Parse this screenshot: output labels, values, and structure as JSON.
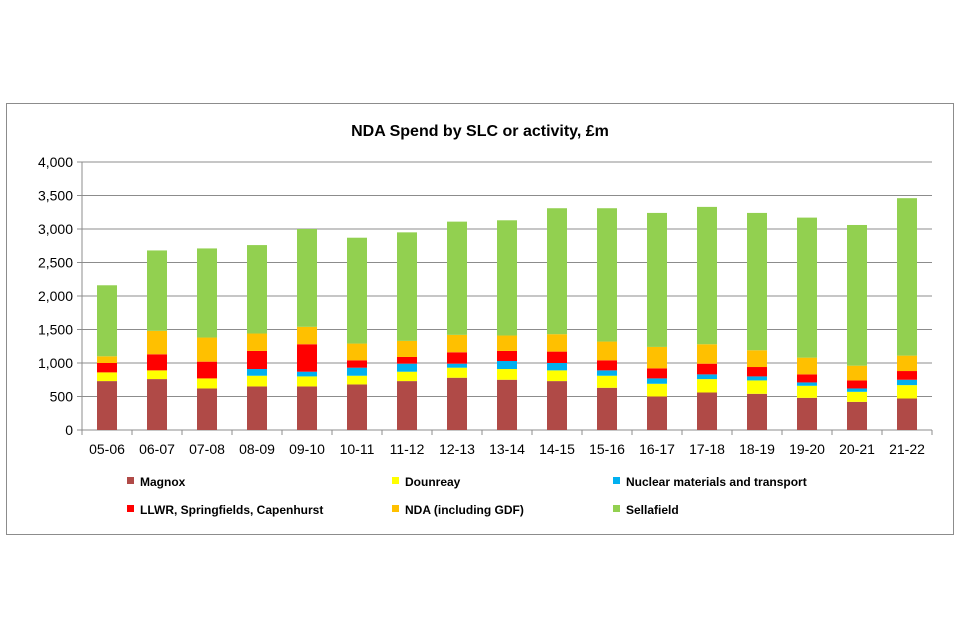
{
  "chart_data": {
    "type": "bar",
    "stacked": true,
    "title": "NDA Spend by SLC or activity, £m",
    "xlabel": "",
    "ylabel": "",
    "ylim": [
      0,
      4000
    ],
    "yticks": [
      0,
      500,
      1000,
      1500,
      2000,
      2500,
      3000,
      3500,
      4000
    ],
    "ytick_labels": [
      "0",
      "500",
      "1,000",
      "1,500",
      "2,000",
      "2,500",
      "3,000",
      "3,500",
      "4,000"
    ],
    "grid": true,
    "legend_position": "bottom",
    "categories": [
      "05-06",
      "06-07",
      "07-08",
      "08-09",
      "09-10",
      "10-11",
      "11-12",
      "12-13",
      "13-14",
      "14-15",
      "15-16",
      "16-17",
      "17-18",
      "18-19",
      "19-20",
      "20-21",
      "21-22"
    ],
    "series": [
      {
        "name": "Magnox",
        "color": "#b04a47",
        "values": [
          730,
          760,
          620,
          650,
          650,
          680,
          730,
          780,
          750,
          730,
          630,
          500,
          560,
          540,
          480,
          420,
          470
        ]
      },
      {
        "name": "Dounreay",
        "color": "#ffff00",
        "values": [
          130,
          130,
          150,
          160,
          150,
          130,
          140,
          150,
          160,
          160,
          180,
          190,
          200,
          200,
          180,
          150,
          200
        ]
      },
      {
        "name": "Nuclear materials and transport",
        "color": "#00b0f0",
        "values": [
          0,
          0,
          0,
          100,
          70,
          120,
          120,
          60,
          120,
          110,
          80,
          80,
          70,
          60,
          50,
          50,
          80
        ]
      },
      {
        "name": "LLWR, Springfields, Capenhurst",
        "color": "#ff0000",
        "values": [
          140,
          240,
          250,
          270,
          410,
          110,
          100,
          170,
          150,
          170,
          150,
          150,
          160,
          140,
          120,
          120,
          130
        ]
      },
      {
        "name": "NDA (including GDF)",
        "color": "#ffc000",
        "values": [
          100,
          350,
          360,
          260,
          260,
          250,
          240,
          260,
          230,
          260,
          280,
          320,
          290,
          250,
          250,
          220,
          230
        ]
      },
      {
        "name": "Sellafield",
        "color": "#92d050",
        "values": [
          1060,
          1200,
          1330,
          1320,
          1460,
          1580,
          1620,
          1690,
          1720,
          1880,
          1990,
          2000,
          2050,
          2050,
          2090,
          2100,
          2350
        ]
      }
    ]
  }
}
